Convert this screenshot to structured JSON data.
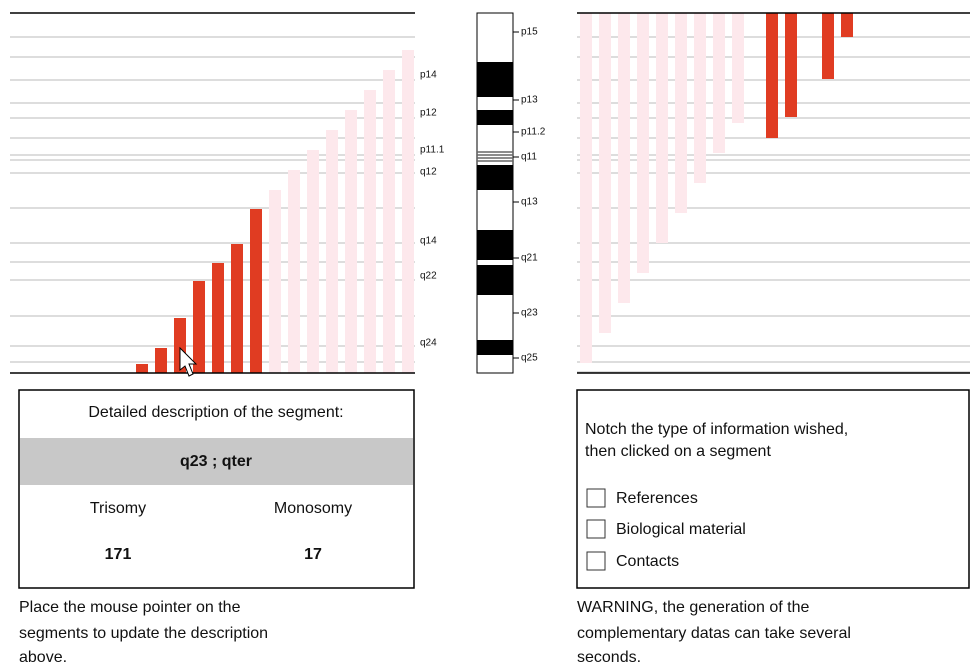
{
  "left_chart": {
    "band_labels": [
      "p14",
      "p12",
      "p11.1",
      "q12",
      "q14",
      "q22",
      "q24"
    ]
  },
  "ideogram": {
    "band_labels": [
      "p15",
      "p13",
      "p11.2",
      "q11",
      "q13",
      "q21",
      "q23",
      "q25"
    ]
  },
  "description": {
    "title": "Detailed description of the segment:",
    "segment": "q23 ; qter",
    "columns": [
      "Trisomy",
      "Monosomy"
    ],
    "counts": [
      "171",
      "17"
    ]
  },
  "left_note": [
    "Place the mouse pointer on the",
    "segments to update the description",
    "above."
  ],
  "options": {
    "instruction": [
      "Notch the type of information wished,",
      "then clicked on a segment"
    ],
    "checkboxes": [
      "References",
      "Biological material",
      "Contacts"
    ]
  },
  "warning": [
    "WARNING,  the generation of the",
    "complementary datas can take several",
    "seconds."
  ]
}
